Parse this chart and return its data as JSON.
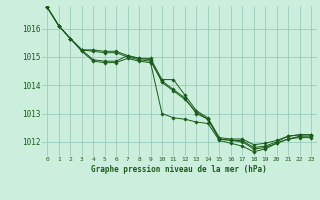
{
  "title": "Graphe pression niveau de la mer (hPa)",
  "background_color": "#cceedd",
  "grid_color": "#99ccbb",
  "line_color": "#1a5c1a",
  "marker_color": "#1a5c1a",
  "xlim": [
    -0.5,
    23.5
  ],
  "ylim": [
    1011.5,
    1016.8
  ],
  "yticks": [
    1012,
    1013,
    1014,
    1015,
    1016
  ],
  "xtick_labels": [
    "0",
    "1",
    "2",
    "3",
    "4",
    "5",
    "6",
    "7",
    "8",
    "9",
    "10",
    "11",
    "12",
    "13",
    "14",
    "15",
    "16",
    "17",
    "18",
    "19",
    "20",
    "21",
    "22",
    "23"
  ],
  "series": [
    [
      1016.75,
      1016.1,
      1015.65,
      1015.25,
      1014.9,
      1014.85,
      1014.85,
      1015.05,
      1014.95,
      1014.9,
      1014.1,
      1013.8,
      1013.5,
      1013.05,
      1012.8,
      1012.1,
      1012.05,
      1012.05,
      1011.8,
      1011.85,
      1012.0,
      1012.2,
      1012.25,
      1012.25
    ],
    [
      1016.75,
      1016.1,
      1015.65,
      1015.25,
      1015.25,
      1015.2,
      1015.2,
      1015.05,
      1014.95,
      1014.95,
      1014.2,
      1014.2,
      1013.65,
      1013.1,
      1012.85,
      1012.15,
      1012.1,
      1012.1,
      1011.9,
      1011.95,
      1012.05,
      1012.2,
      1012.25,
      1012.25
    ],
    [
      1016.75,
      1016.1,
      1015.65,
      1015.25,
      1015.2,
      1015.15,
      1015.15,
      1015.0,
      1014.9,
      1014.85,
      1014.15,
      1013.85,
      1013.55,
      1013.0,
      1012.8,
      1012.1,
      1012.05,
      1012.0,
      1011.75,
      1011.8,
      1011.95,
      1012.1,
      1012.2,
      1012.2
    ],
    [
      1016.75,
      1016.1,
      1015.65,
      1015.2,
      1014.85,
      1014.8,
      1014.8,
      1014.95,
      1014.85,
      1014.8,
      1013.0,
      1012.85,
      1012.8,
      1012.7,
      1012.65,
      1012.05,
      1011.95,
      1011.85,
      1011.65,
      1011.75,
      1011.95,
      1012.1,
      1012.15,
      1012.15
    ]
  ]
}
